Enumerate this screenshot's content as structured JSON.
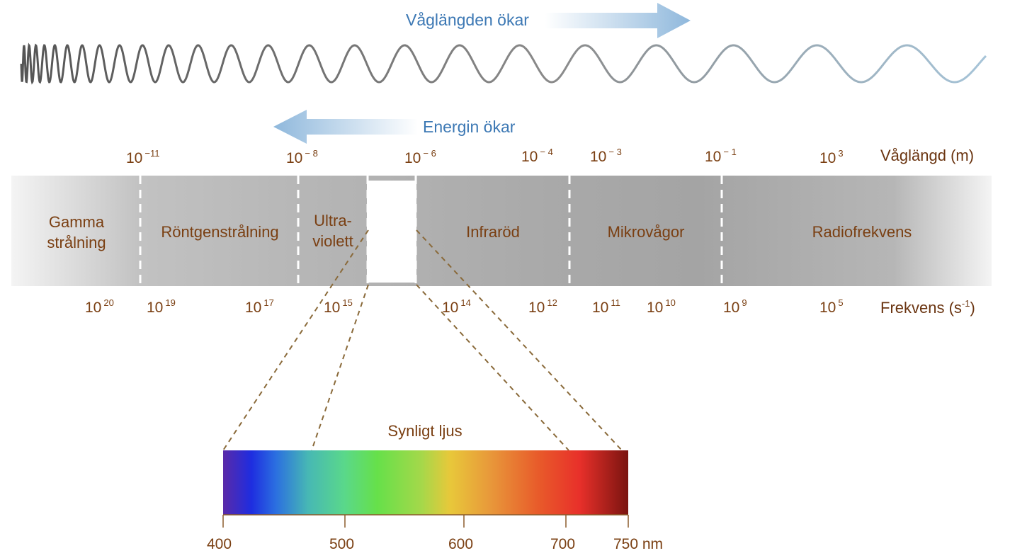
{
  "arrows": {
    "wavelength": {
      "label": "Våglängden ökar"
    },
    "energy": {
      "label": "Energin ökar"
    }
  },
  "axes": {
    "wavelength_title": "Våglängd (m)",
    "frequency_title_main": "Frekvens (s",
    "frequency_title_exp": "-1",
    "frequency_title_close": ")"
  },
  "wavelength_ticks": [
    {
      "base": "10",
      "exp": "−11"
    },
    {
      "base": "10",
      "exp": "− 8"
    },
    {
      "base": "10",
      "exp": "− 6"
    },
    {
      "base": "10",
      "exp": "− 4"
    },
    {
      "base": "10",
      "exp": "− 3"
    },
    {
      "base": "10",
      "exp": "− 1"
    },
    {
      "base": "10",
      "exp": "3"
    }
  ],
  "frequency_ticks": [
    {
      "base": "10",
      "exp": "20"
    },
    {
      "base": "10",
      "exp": "19"
    },
    {
      "base": "10",
      "exp": "17"
    },
    {
      "base": "10",
      "exp": "15"
    },
    {
      "base": "10",
      "exp": "14"
    },
    {
      "base": "10",
      "exp": "12"
    },
    {
      "base": "10",
      "exp": "11"
    },
    {
      "base": "10",
      "exp": "10"
    },
    {
      "base": "10",
      "exp": "9"
    },
    {
      "base": "10",
      "exp": "5"
    }
  ],
  "bands": {
    "gamma_line1": "Gamma",
    "gamma_line2": "strålning",
    "xray": "Röntgenstrålning",
    "uv_line1": "Ultra-",
    "uv_line2": "violett",
    "infrared": "Infraröd",
    "microwave": "Mikrovågor",
    "radio": "Radiofrekvens"
  },
  "visible": {
    "title": "Synligt ljus",
    "ticks": [
      "400",
      "500",
      "600",
      "700",
      "750 nm"
    ]
  },
  "colors": {
    "label_brown": "#7a3f12",
    "arrow_blue": "#3c78b4",
    "dashed_brown": "#8a6a3a"
  }
}
